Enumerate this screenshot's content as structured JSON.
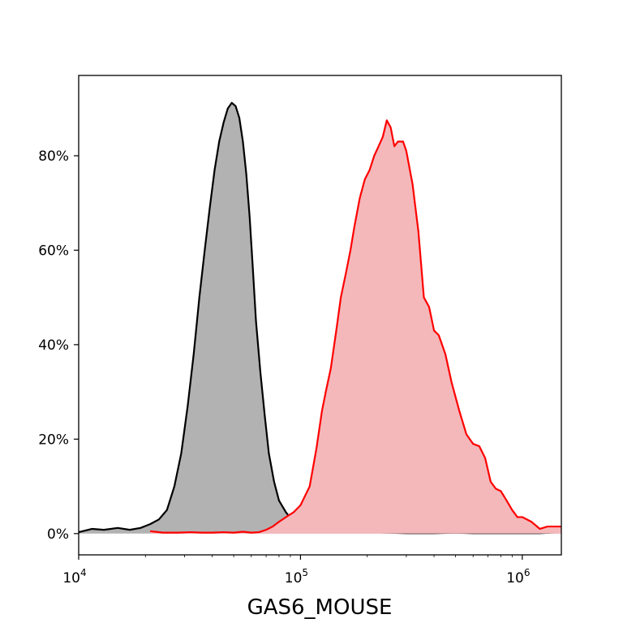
{
  "chart_data": {
    "type": "area",
    "title": "",
    "xlabel": "GAS6_MOUSE",
    "ylabel": "",
    "x_scale": "log",
    "xlim": [
      10000,
      1500000
    ],
    "ylim": [
      -0.045,
      0.97
    ],
    "grid": false,
    "legend": "none",
    "x_ticks": [
      {
        "value": 10000,
        "base": "10",
        "exp": "4"
      },
      {
        "value": 100000,
        "base": "10",
        "exp": "5"
      },
      {
        "value": 1000000,
        "base": "10",
        "exp": "6"
      }
    ],
    "y_ticks": [
      {
        "value": 0,
        "label": "0%"
      },
      {
        "value": 0.2,
        "label": "20%"
      },
      {
        "value": 0.4,
        "label": "40%"
      },
      {
        "value": 0.6,
        "label": "60%"
      },
      {
        "value": 0.8,
        "label": "80%"
      }
    ],
    "series": [
      {
        "line_color": "#000000",
        "fill_color": "#b2b2b2",
        "points": [
          [
            10000,
            0.003
          ],
          [
            11500,
            0.01
          ],
          [
            13000,
            0.008
          ],
          [
            15000,
            0.012
          ],
          [
            17000,
            0.008
          ],
          [
            19000,
            0.012
          ],
          [
            21000,
            0.02
          ],
          [
            23000,
            0.03
          ],
          [
            25000,
            0.05
          ],
          [
            27000,
            0.1
          ],
          [
            29000,
            0.17
          ],
          [
            31000,
            0.27
          ],
          [
            33000,
            0.38
          ],
          [
            35000,
            0.5
          ],
          [
            37000,
            0.6
          ],
          [
            39000,
            0.69
          ],
          [
            41000,
            0.77
          ],
          [
            43000,
            0.83
          ],
          [
            45000,
            0.87
          ],
          [
            47000,
            0.9
          ],
          [
            49000,
            0.912
          ],
          [
            51000,
            0.905
          ],
          [
            53000,
            0.88
          ],
          [
            55000,
            0.83
          ],
          [
            57000,
            0.76
          ],
          [
            59000,
            0.67
          ],
          [
            61000,
            0.56
          ],
          [
            63000,
            0.45
          ],
          [
            66000,
            0.34
          ],
          [
            69000,
            0.25
          ],
          [
            72000,
            0.17
          ],
          [
            76000,
            0.11
          ],
          [
            80000,
            0.07
          ],
          [
            86000,
            0.045
          ],
          [
            93000,
            0.025
          ],
          [
            100000,
            0.012
          ],
          [
            110000,
            0.006
          ],
          [
            130000,
            0.004
          ],
          [
            160000,
            0.003
          ],
          [
            200000,
            0.003
          ],
          [
            250000,
            0.002
          ],
          [
            300000,
            0.001
          ],
          [
            400000,
            0.001
          ],
          [
            500000,
            0.002
          ],
          [
            600000,
            0.001
          ],
          [
            800000,
            0.001
          ],
          [
            1000000,
            0.001
          ],
          [
            1200000,
            0.001
          ],
          [
            1500000,
            0.003
          ]
        ]
      },
      {
        "line_color": "#ff0000",
        "fill_color": "#f4b8bb",
        "points": [
          [
            21000,
            0.005
          ],
          [
            24000,
            0.002
          ],
          [
            28000,
            0.002
          ],
          [
            32000,
            0.003
          ],
          [
            36000,
            0.002
          ],
          [
            40000,
            0.002
          ],
          [
            45000,
            0.003
          ],
          [
            50000,
            0.002
          ],
          [
            55000,
            0.004
          ],
          [
            60000,
            0.002
          ],
          [
            65000,
            0.003
          ],
          [
            70000,
            0.008
          ],
          [
            75000,
            0.015
          ],
          [
            80000,
            0.025
          ],
          [
            86000,
            0.035
          ],
          [
            93000,
            0.045
          ],
          [
            100000,
            0.06
          ],
          [
            110000,
            0.1
          ],
          [
            118000,
            0.18
          ],
          [
            125000,
            0.26
          ],
          [
            130000,
            0.3
          ],
          [
            137000,
            0.35
          ],
          [
            145000,
            0.43
          ],
          [
            152000,
            0.5
          ],
          [
            160000,
            0.55
          ],
          [
            168000,
            0.6
          ],
          [
            175000,
            0.65
          ],
          [
            185000,
            0.71
          ],
          [
            195000,
            0.75
          ],
          [
            205000,
            0.77
          ],
          [
            215000,
            0.8
          ],
          [
            225000,
            0.82
          ],
          [
            235000,
            0.84
          ],
          [
            245000,
            0.875
          ],
          [
            255000,
            0.86
          ],
          [
            265000,
            0.82
          ],
          [
            275000,
            0.83
          ],
          [
            290000,
            0.83
          ],
          [
            300000,
            0.81
          ],
          [
            320000,
            0.74
          ],
          [
            340000,
            0.64
          ],
          [
            360000,
            0.5
          ],
          [
            380000,
            0.48
          ],
          [
            400000,
            0.43
          ],
          [
            420000,
            0.42
          ],
          [
            450000,
            0.38
          ],
          [
            480000,
            0.32
          ],
          [
            520000,
            0.26
          ],
          [
            560000,
            0.21
          ],
          [
            600000,
            0.19
          ],
          [
            640000,
            0.185
          ],
          [
            680000,
            0.16
          ],
          [
            720000,
            0.11
          ],
          [
            760000,
            0.095
          ],
          [
            800000,
            0.09
          ],
          [
            850000,
            0.07
          ],
          [
            900000,
            0.05
          ],
          [
            950000,
            0.035
          ],
          [
            1000000,
            0.035
          ],
          [
            1050000,
            0.03
          ],
          [
            1100000,
            0.025
          ],
          [
            1200000,
            0.01
          ],
          [
            1300000,
            0.015
          ],
          [
            1400000,
            0.015
          ],
          [
            1500000,
            0.015
          ]
        ]
      }
    ]
  }
}
